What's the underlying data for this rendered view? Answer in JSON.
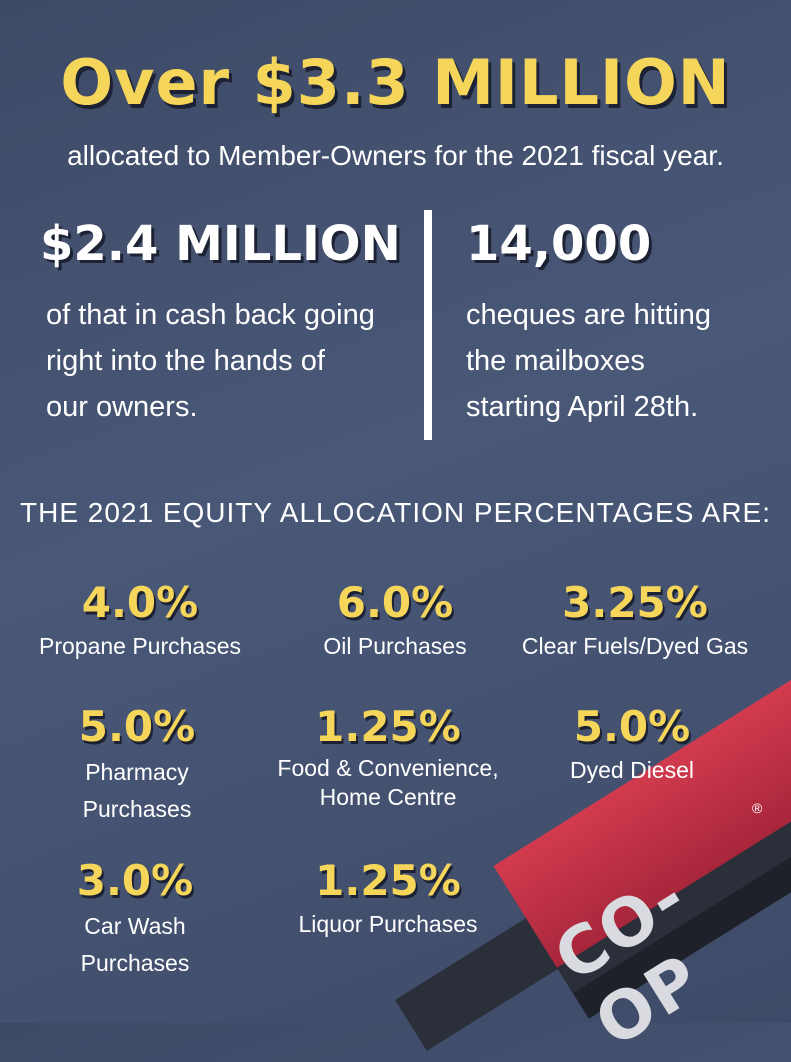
{
  "headline": "Over $3.3 MILLION",
  "subline": "allocated to Member-Owners for the 2021 fiscal year.",
  "stats": [
    {
      "value": "$2.4 MILLION",
      "lines": [
        "of that in cash back going",
        "right into the hands of",
        "our owners."
      ]
    },
    {
      "value": "14,000",
      "lines": [
        "cheques are hitting",
        "the mailboxes",
        "starting April 28th."
      ]
    }
  ],
  "section_title": "THE 2021 EQUITY ALLOCATION PERCENTAGES ARE:",
  "allocations": [
    {
      "value": "4.0%",
      "label": [
        "Propane Purchases"
      ]
    },
    {
      "value": "6.0%",
      "label": [
        "Oil Purchases"
      ]
    },
    {
      "value": "3.25%",
      "label": [
        "Clear Fuels/Dyed Gas"
      ]
    },
    {
      "value": "5.0%",
      "label": [
        "Pharmacy",
        "Purchases"
      ]
    },
    {
      "value": "1.25%",
      "label": [
        "Food & Convenience,",
        "Home Centre"
      ]
    },
    {
      "value": "5.0%",
      "label": [
        "Dyed Diesel"
      ]
    },
    {
      "value": "3.0%",
      "label": [
        "Car Wash",
        "Purchases"
      ]
    },
    {
      "value": "1.25%",
      "label": [
        "Liquor Purchases"
      ]
    }
  ],
  "logo": {
    "text": "CO-OP",
    "mark": "®"
  },
  "colors": {
    "accent": "#f6d65a",
    "background": "#45526f",
    "canopy": "#c2304a"
  }
}
